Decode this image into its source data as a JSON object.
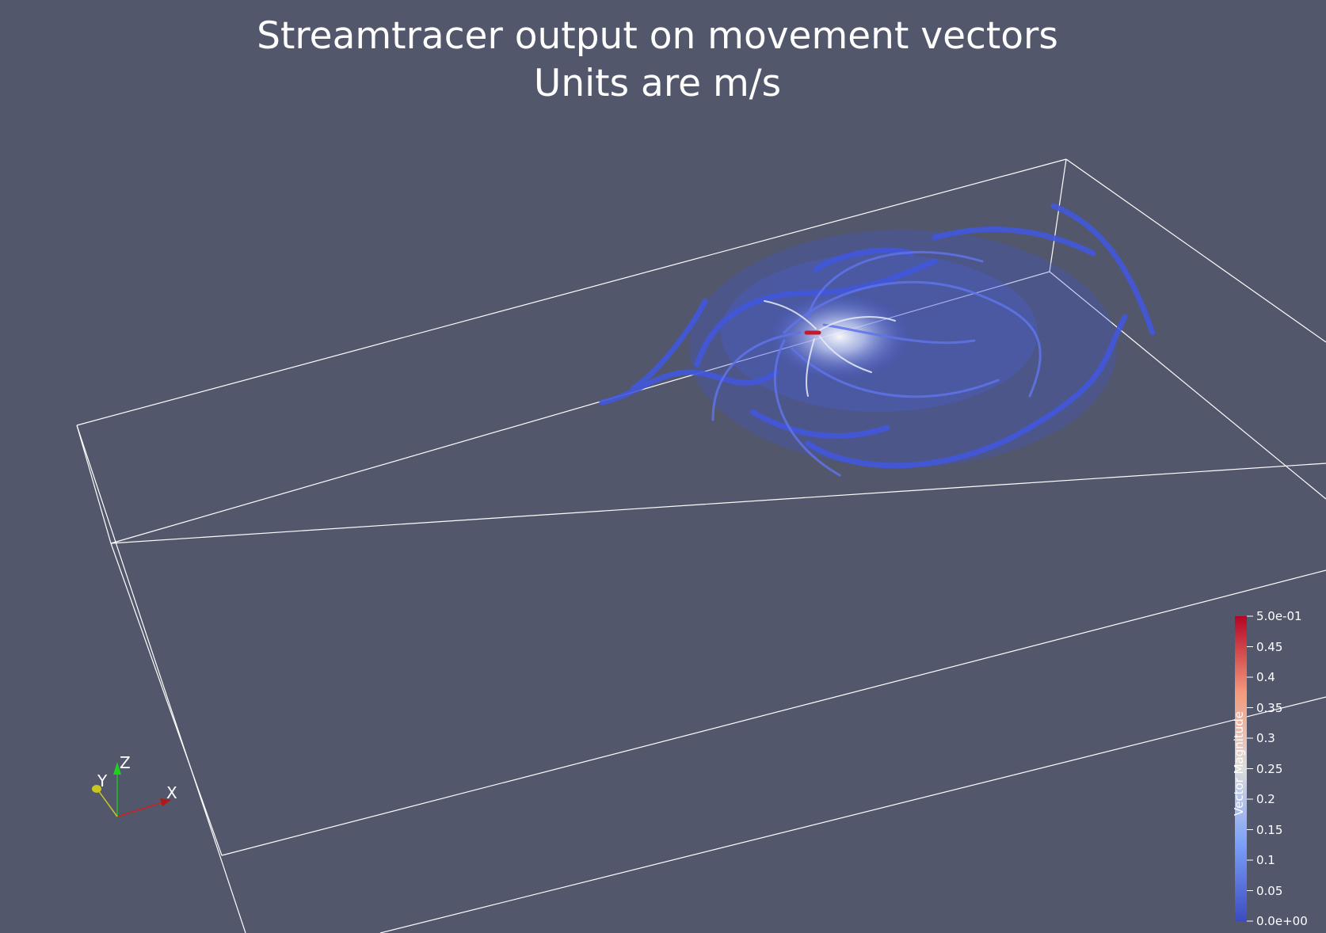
{
  "title": {
    "line1": "Streamtracer output on movement vectors",
    "line2": "Units are m/s"
  },
  "colors": {
    "background": "#52576b",
    "low": "#3b4cc0",
    "mid": "#dddddd",
    "high": "#b40426",
    "outline": "#ffffff"
  },
  "legend": {
    "title": "Vector Magnitude",
    "ticks": [
      "5.0e-01",
      "0.45",
      "0.4",
      "0.35",
      "0.3",
      "0.25",
      "0.2",
      "0.15",
      "0.1",
      "0.05",
      "0.0e+00"
    ]
  },
  "orientation_axes": {
    "x_label": "X",
    "y_label": "Y",
    "z_label": "Z"
  }
}
